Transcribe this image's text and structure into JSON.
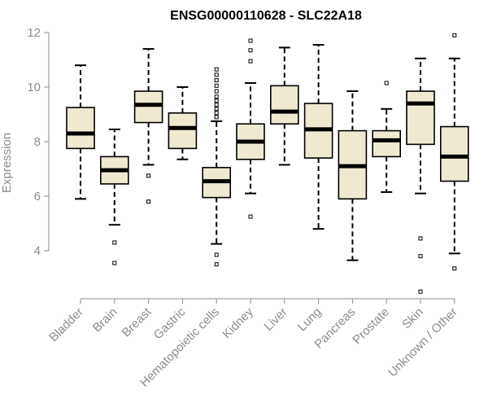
{
  "chart_data": {
    "type": "boxplot",
    "title": "ENSG00000110628 - SLC22A18",
    "ylabel": "Expression",
    "xlabel": "",
    "ylim": [
      2.5,
      12
    ],
    "yticks": [
      4,
      6,
      8,
      10,
      12
    ],
    "box_fill": "#efe9d2",
    "median_color": "#000000",
    "axis_color": "#8c8c8c",
    "categories": [
      "Bladder",
      "Brain",
      "Breast",
      "Gastric",
      "Hematopoietic cells",
      "Kidney",
      "Liver",
      "Lung",
      "Pancreas",
      "Prostate",
      "Skin",
      "Unknown / Other"
    ],
    "boxes": [
      {
        "whisker_low": 5.9,
        "q1": 7.75,
        "median": 8.3,
        "q3": 9.25,
        "whisker_high": 10.8,
        "outliers": []
      },
      {
        "whisker_low": 4.95,
        "q1": 6.45,
        "median": 6.95,
        "q3": 7.45,
        "whisker_high": 8.45,
        "outliers": [
          4.3,
          3.55
        ]
      },
      {
        "whisker_low": 7.15,
        "q1": 8.7,
        "median": 9.35,
        "q3": 9.85,
        "whisker_high": 11.4,
        "outliers": [
          6.75,
          5.8
        ]
      },
      {
        "whisker_low": 7.35,
        "q1": 7.75,
        "median": 8.5,
        "q3": 9.05,
        "whisker_high": 10.0,
        "outliers": []
      },
      {
        "whisker_low": 4.25,
        "q1": 5.95,
        "median": 6.55,
        "q3": 7.05,
        "whisker_high": 8.75,
        "outliers": [
          10.65,
          10.45,
          10.25,
          10.05,
          9.85,
          9.65,
          9.5,
          9.35,
          9.2,
          9.05,
          8.9,
          3.85,
          3.5
        ]
      },
      {
        "whisker_low": 6.1,
        "q1": 7.35,
        "median": 8.0,
        "q3": 8.65,
        "whisker_high": 10.15,
        "outliers": [
          11.7,
          11.35,
          10.95,
          5.25
        ]
      },
      {
        "whisker_low": 7.15,
        "q1": 8.65,
        "median": 9.1,
        "q3": 10.05,
        "whisker_high": 11.45,
        "outliers": []
      },
      {
        "whisker_low": 4.8,
        "q1": 7.4,
        "median": 8.45,
        "q3": 9.4,
        "whisker_high": 11.55,
        "outliers": []
      },
      {
        "whisker_low": 3.65,
        "q1": 5.9,
        "median": 7.1,
        "q3": 8.4,
        "whisker_high": 9.85,
        "outliers": []
      },
      {
        "whisker_low": 6.15,
        "q1": 7.45,
        "median": 8.05,
        "q3": 8.4,
        "whisker_high": 9.2,
        "outliers": [
          10.15
        ]
      },
      {
        "whisker_low": 6.1,
        "q1": 7.9,
        "median": 9.4,
        "q3": 9.85,
        "whisker_high": 11.05,
        "outliers": [
          4.45,
          3.8,
          2.5
        ]
      },
      {
        "whisker_low": 3.9,
        "q1": 6.55,
        "median": 7.45,
        "q3": 8.55,
        "whisker_high": 11.05,
        "outliers": [
          11.9,
          3.35
        ]
      }
    ]
  }
}
